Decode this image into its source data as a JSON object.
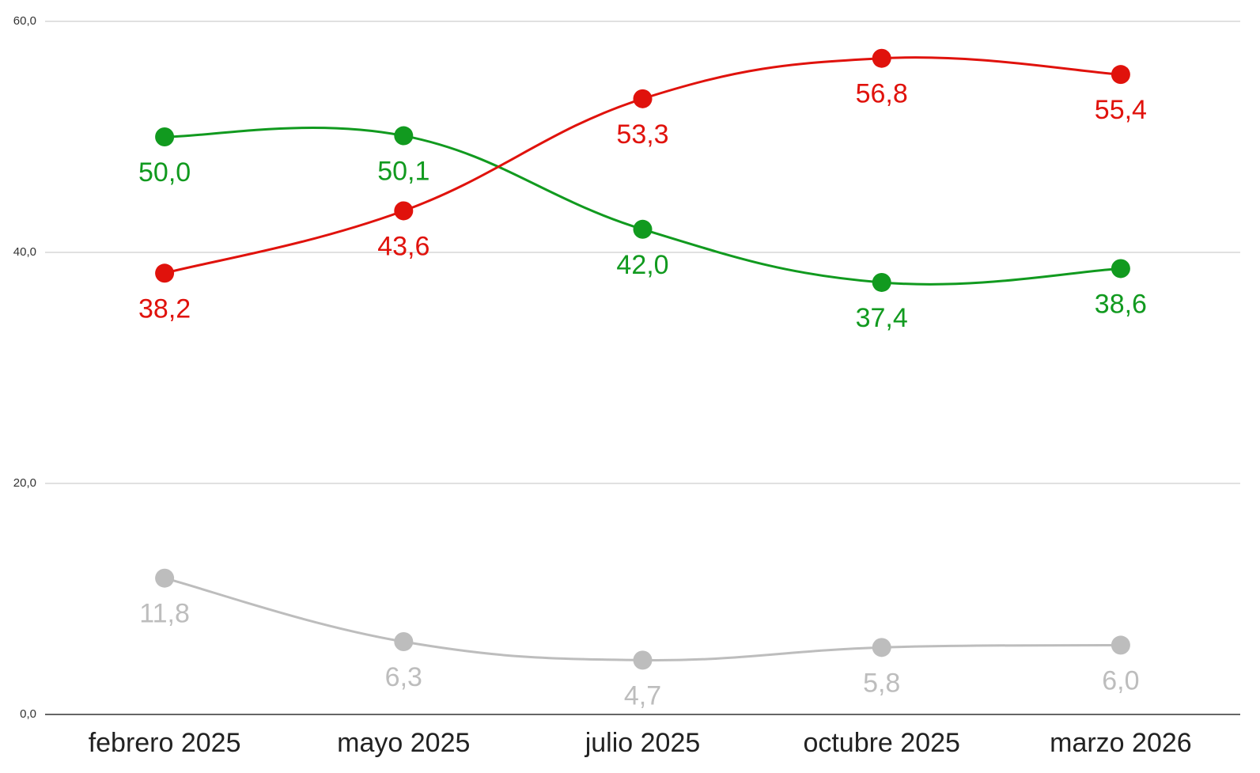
{
  "chart_data": {
    "type": "line",
    "categories": [
      "febrero 2025",
      "mayo 2025",
      "julio 2025",
      "octubre 2025",
      "marzo 2026"
    ],
    "series": [
      {
        "color": "#119a1f",
        "values": [
          50.0,
          50.1,
          42.0,
          37.4,
          38.6
        ],
        "value_labels": [
          "50,0",
          "50,1",
          "42,0",
          "37,4",
          "38,6"
        ]
      },
      {
        "color": "#e0120c",
        "values": [
          38.2,
          43.6,
          53.3,
          56.8,
          55.4
        ],
        "value_labels": [
          "38,2",
          "43,6",
          "53,3",
          "56,8",
          "55,4"
        ]
      },
      {
        "color": "#bdbdbd",
        "values": [
          11.8,
          6.3,
          4.7,
          5.8,
          6.0
        ],
        "value_labels": [
          "11,8",
          "6,3",
          "4,7",
          "5,8",
          "6,0"
        ]
      }
    ],
    "ylim": [
      0,
      60
    ],
    "yticks": [
      {
        "value": 0,
        "label": "0,0"
      },
      {
        "value": 20,
        "label": "20,0"
      },
      {
        "value": 40,
        "label": "40,0"
      },
      {
        "value": 60,
        "label": "60,0"
      }
    ],
    "grid": true
  }
}
